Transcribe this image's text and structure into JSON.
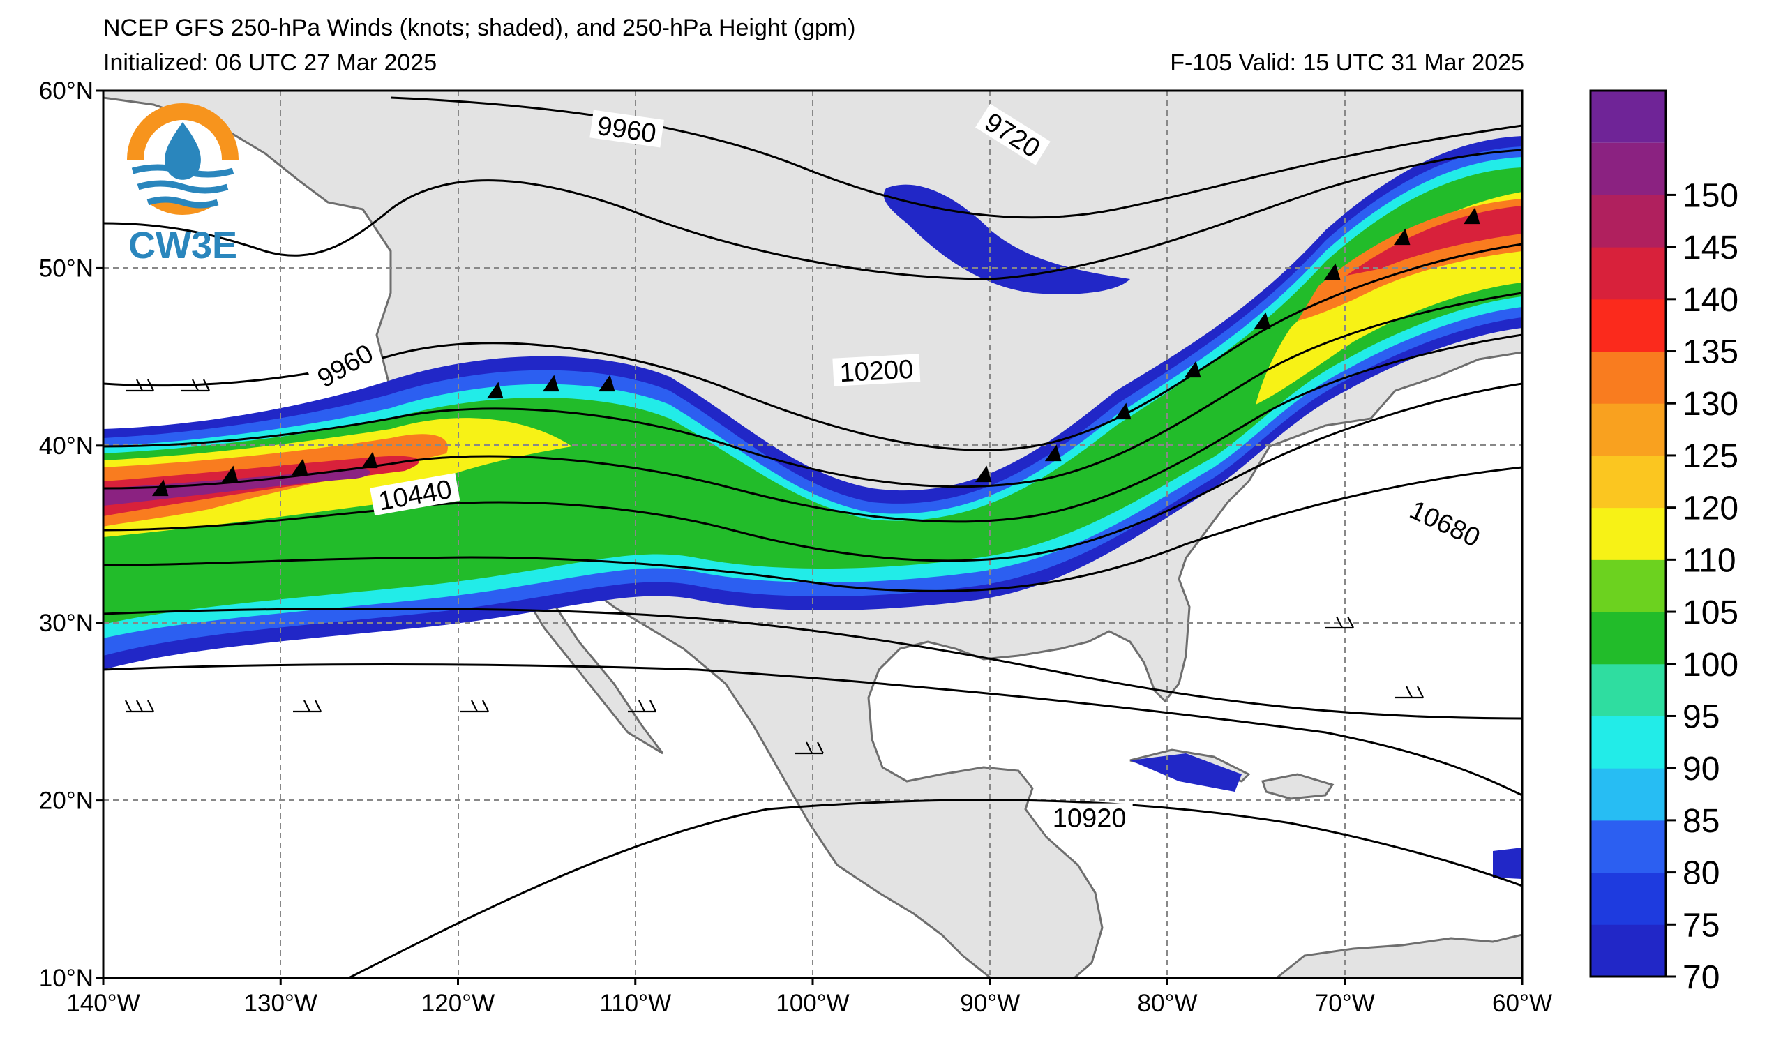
{
  "title": {
    "line1": "NCEP GFS 250-hPa Winds (knots; shaded), and 250-hPa Height (gpm)",
    "line2": "Initialized: 06 UTC 27 Mar 2025",
    "valid": "F-105  Valid: 15 UTC 31 Mar 2025"
  },
  "logo": {
    "text": "CW3E",
    "icon": "water-drop-sun-logo-icon"
  },
  "map": {
    "projection": "equirectangular",
    "lon_range": [
      -140,
      -60
    ],
    "lat_range": [
      10,
      60
    ],
    "lon_ticks": [
      "140°W",
      "130°W",
      "120°W",
      "110°W",
      "100°W",
      "90°W",
      "80°W",
      "70°W",
      "60°W"
    ],
    "lat_ticks": [
      "10°N",
      "20°N",
      "30°N",
      "40°N",
      "50°N",
      "60°N"
    ],
    "gridlines": true,
    "land_color": "#e3e3e3",
    "coast_color": "#6e6e6e"
  },
  "contour_labels": [
    {
      "text": "9960",
      "lon": -110.5,
      "lat": 57.7,
      "angle": 8
    },
    {
      "text": "9720",
      "lon": -88.8,
      "lat": 57.4,
      "angle": 32
    },
    {
      "text": "9960",
      "lon": -126.3,
      "lat": 44.4,
      "angle": -30
    },
    {
      "text": "10200",
      "lon": -96.4,
      "lat": 44.1,
      "angle": -3
    },
    {
      "text": "10440",
      "lon": -122.4,
      "lat": 37.1,
      "angle": -10
    },
    {
      "text": "10680",
      "lon": -64.4,
      "lat": 35.5,
      "angle": 25
    },
    {
      "text": "10920",
      "lon": -84.4,
      "lat": 18.9,
      "angle": 0
    }
  ],
  "colorbar": {
    "ticks": [
      "70",
      "75",
      "80",
      "85",
      "90",
      "95",
      "100",
      "105",
      "110",
      "120",
      "125",
      "130",
      "135",
      "140",
      "145",
      "150"
    ],
    "colors": [
      "#2127c7",
      "#1e3bdf",
      "#2c5ff1",
      "#27bdf3",
      "#22ece8",
      "#2fdda0",
      "#22bc2a",
      "#6cd21f",
      "#f7f216",
      "#fbc620",
      "#f9a11f",
      "#f97c1f",
      "#fb2a1c",
      "#d8213b",
      "#b0205e",
      "#8b2281"
    ],
    "top_color": "#6f2497"
  }
}
